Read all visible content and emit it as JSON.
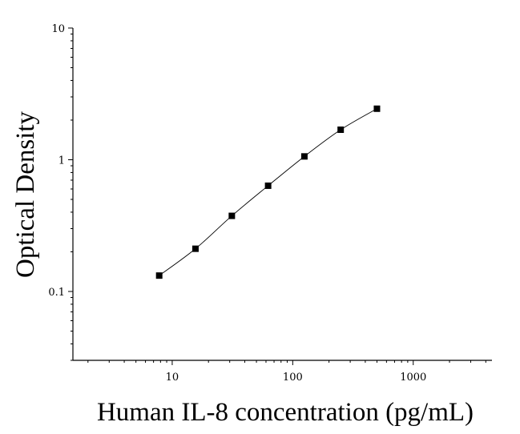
{
  "chart_data": {
    "type": "scatter",
    "xlabel": "Human IL-8 concentration (pg/mL)",
    "ylabel": "Optical Density",
    "xscale": "log",
    "yscale": "log",
    "xlim": [
      1.5,
      4500
    ],
    "ylim": [
      0.03,
      10
    ],
    "x_ticks": [
      10,
      100,
      1000
    ],
    "x_tick_labels": [
      "10",
      "100",
      "1000"
    ],
    "y_ticks": [
      0.1,
      1,
      10
    ],
    "y_tick_labels": [
      "0.1",
      "1",
      "10"
    ],
    "grid": false,
    "legend": "none",
    "fit_curve": true,
    "marker": "square",
    "colors": {
      "marker": "#000000",
      "line": "#000000",
      "axes": "#000000"
    },
    "series": [
      {
        "x": [
          7.8,
          15.6,
          31.25,
          62.5,
          125,
          250,
          500
        ],
        "y": [
          0.132,
          0.211,
          0.375,
          0.635,
          1.06,
          1.69,
          2.44
        ]
      }
    ]
  }
}
